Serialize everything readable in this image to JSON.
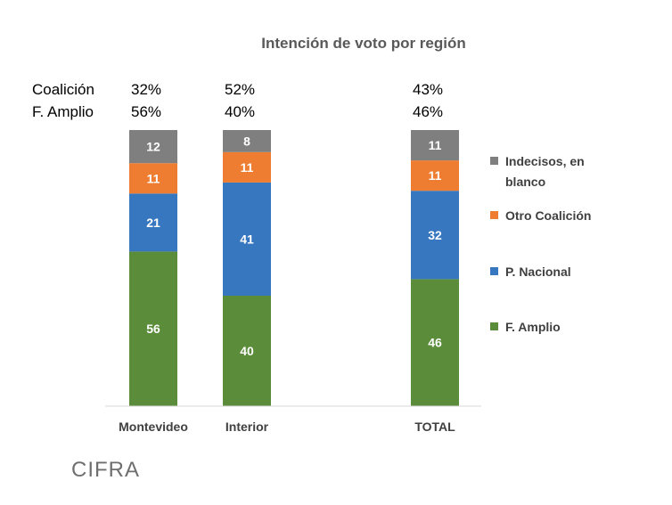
{
  "chart_data": {
    "type": "bar",
    "stacked": true,
    "title": "Intención de voto por región",
    "categories": [
      "Montevideo",
      "Interior",
      "TOTAL"
    ],
    "series": [
      {
        "name": "F. Amplio",
        "values": [
          56,
          40,
          46
        ],
        "color": "#5b8c3a"
      },
      {
        "name": "P. Nacional",
        "values": [
          21,
          41,
          32
        ],
        "color": "#3777c0"
      },
      {
        "name": "Otro Coalición",
        "values": [
          11,
          11,
          11
        ],
        "color": "#ee7d31"
      },
      {
        "name": "Indecisos, en blanco",
        "values": [
          12,
          8,
          11
        ],
        "color": "#7f7f7f"
      }
    ],
    "legend": {
      "placement": "right",
      "entries": [
        {
          "lines": [
            "Indecisos, en",
            "blanco"
          ],
          "color": "#7f7f7f"
        },
        {
          "lines": [
            "Otro Coalición"
          ],
          "color": "#ee7d31"
        },
        {
          "lines": [
            "P. Nacional"
          ],
          "color": "#3777c0"
        },
        {
          "lines": [
            "F. Amplio"
          ],
          "color": "#5b8c3a"
        }
      ]
    },
    "summary_rows": [
      {
        "label": "Coalición",
        "values": [
          "32%",
          "52%",
          "43%"
        ]
      },
      {
        "label": "F. Amplio",
        "values": [
          "56%",
          "40%",
          "46%"
        ]
      }
    ],
    "grid": false
  },
  "logo": {
    "text": "CIFRA"
  }
}
